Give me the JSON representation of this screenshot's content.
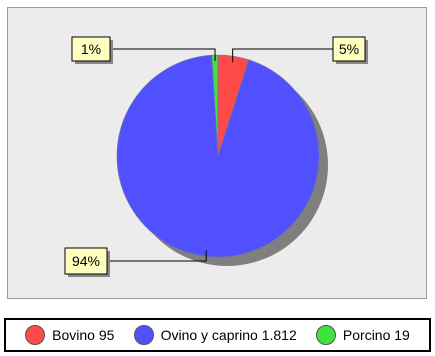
{
  "chart_data": {
    "type": "pie",
    "title": "",
    "slices": [
      {
        "label": "Bovino",
        "value": 95,
        "value_text": "95",
        "percent_label": "5%",
        "color": "#ff4a4a"
      },
      {
        "label": "Ovino y caprino",
        "value": 1812,
        "value_text": "1.812",
        "percent_label": "94%",
        "color": "#5050ff"
      },
      {
        "label": "Porcino",
        "value": 19,
        "value_text": "19",
        "percent_label": "1%",
        "color": "#40e040"
      }
    ],
    "legend_position": "bottom"
  },
  "colors": {
    "plot_background": "#ececec",
    "shadow": "#7f7f7f",
    "callout_fill": "#ffffc0"
  }
}
